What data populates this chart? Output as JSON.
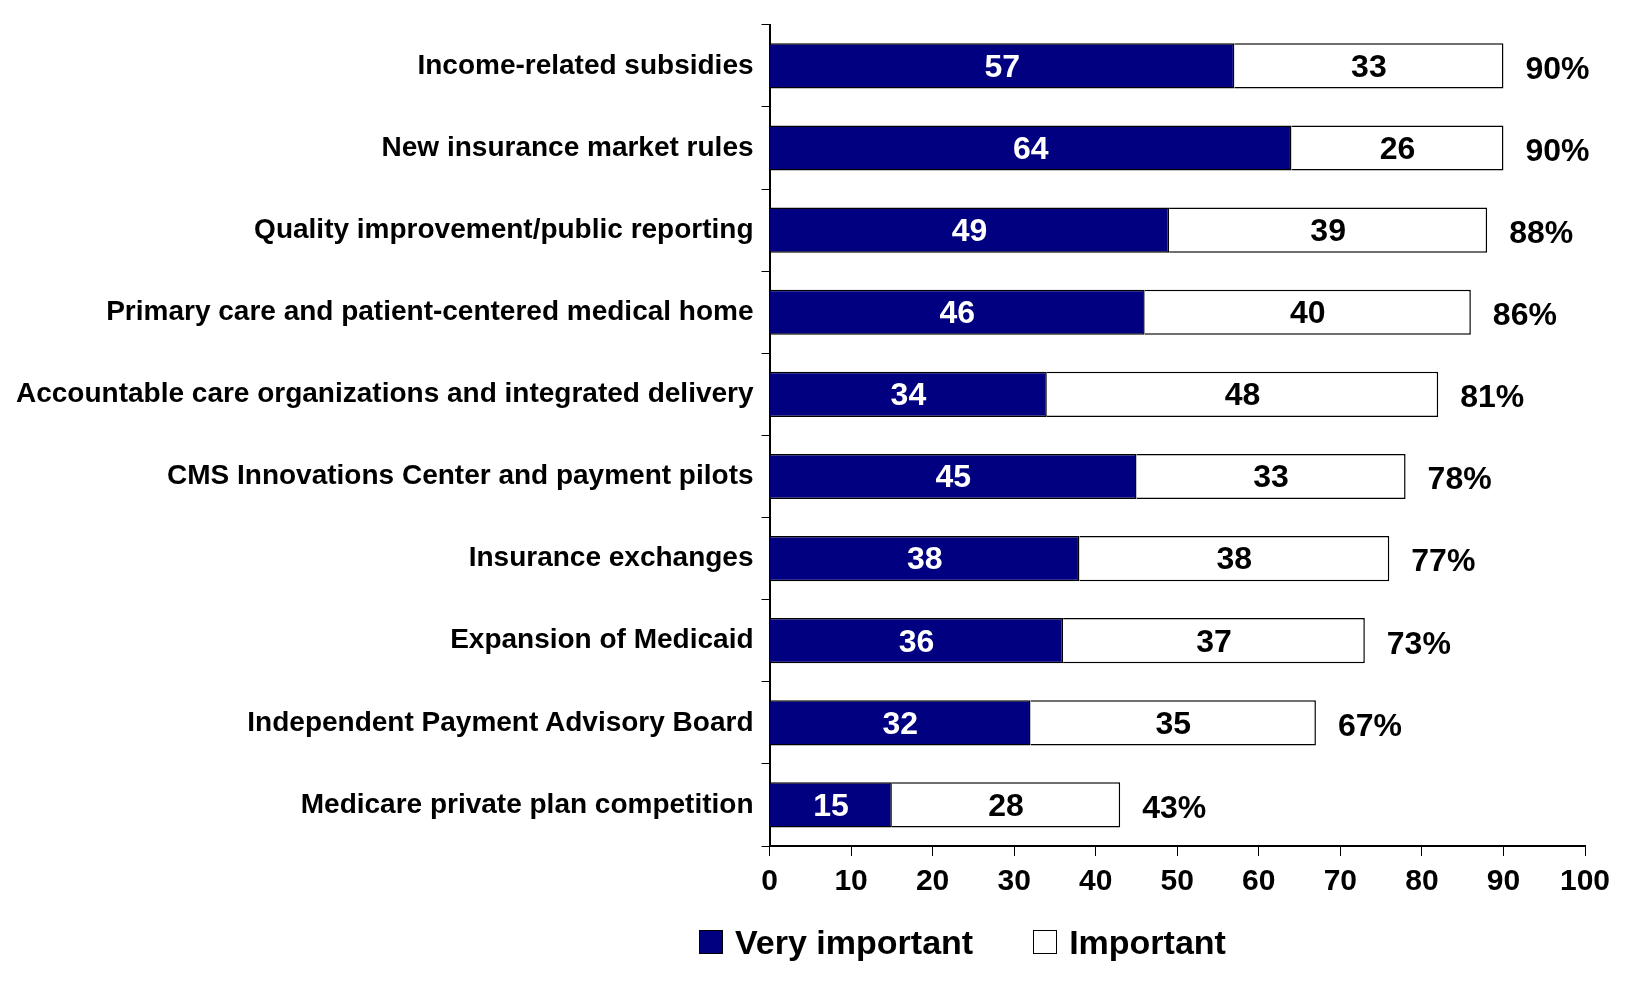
{
  "chart_data": {
    "type": "bar",
    "orientation": "horizontal",
    "stacked": true,
    "categories": [
      "Income-related subsidies",
      "New insurance market rules",
      "Quality improvement/public reporting",
      "Primary care and patient-centered medical home",
      "Accountable care organizations and integrated delivery",
      "CMS Innovations Center and payment pilots",
      "Insurance exchanges",
      "Expansion of Medicaid",
      "Independent Payment Advisory Board",
      "Medicare private plan competition"
    ],
    "series": [
      {
        "name": "Very important",
        "color": "#000080",
        "values": [
          57,
          64,
          49,
          46,
          34,
          45,
          38,
          36,
          32,
          15
        ]
      },
      {
        "name": "Important",
        "color": "#ffffff",
        "values": [
          33,
          26,
          39,
          40,
          48,
          33,
          38,
          37,
          35,
          28
        ]
      }
    ],
    "xlim": [
      0,
      100
    ],
    "xticks": [
      0,
      10,
      20,
      30,
      40,
      50,
      60,
      70,
      80,
      90,
      100
    ],
    "data_labels": true,
    "totals": [
      "90%",
      "90%",
      "88%",
      "86%",
      "81%",
      "78%",
      "77%",
      "73%",
      "67%",
      "43%"
    ],
    "legend": "bottom"
  }
}
